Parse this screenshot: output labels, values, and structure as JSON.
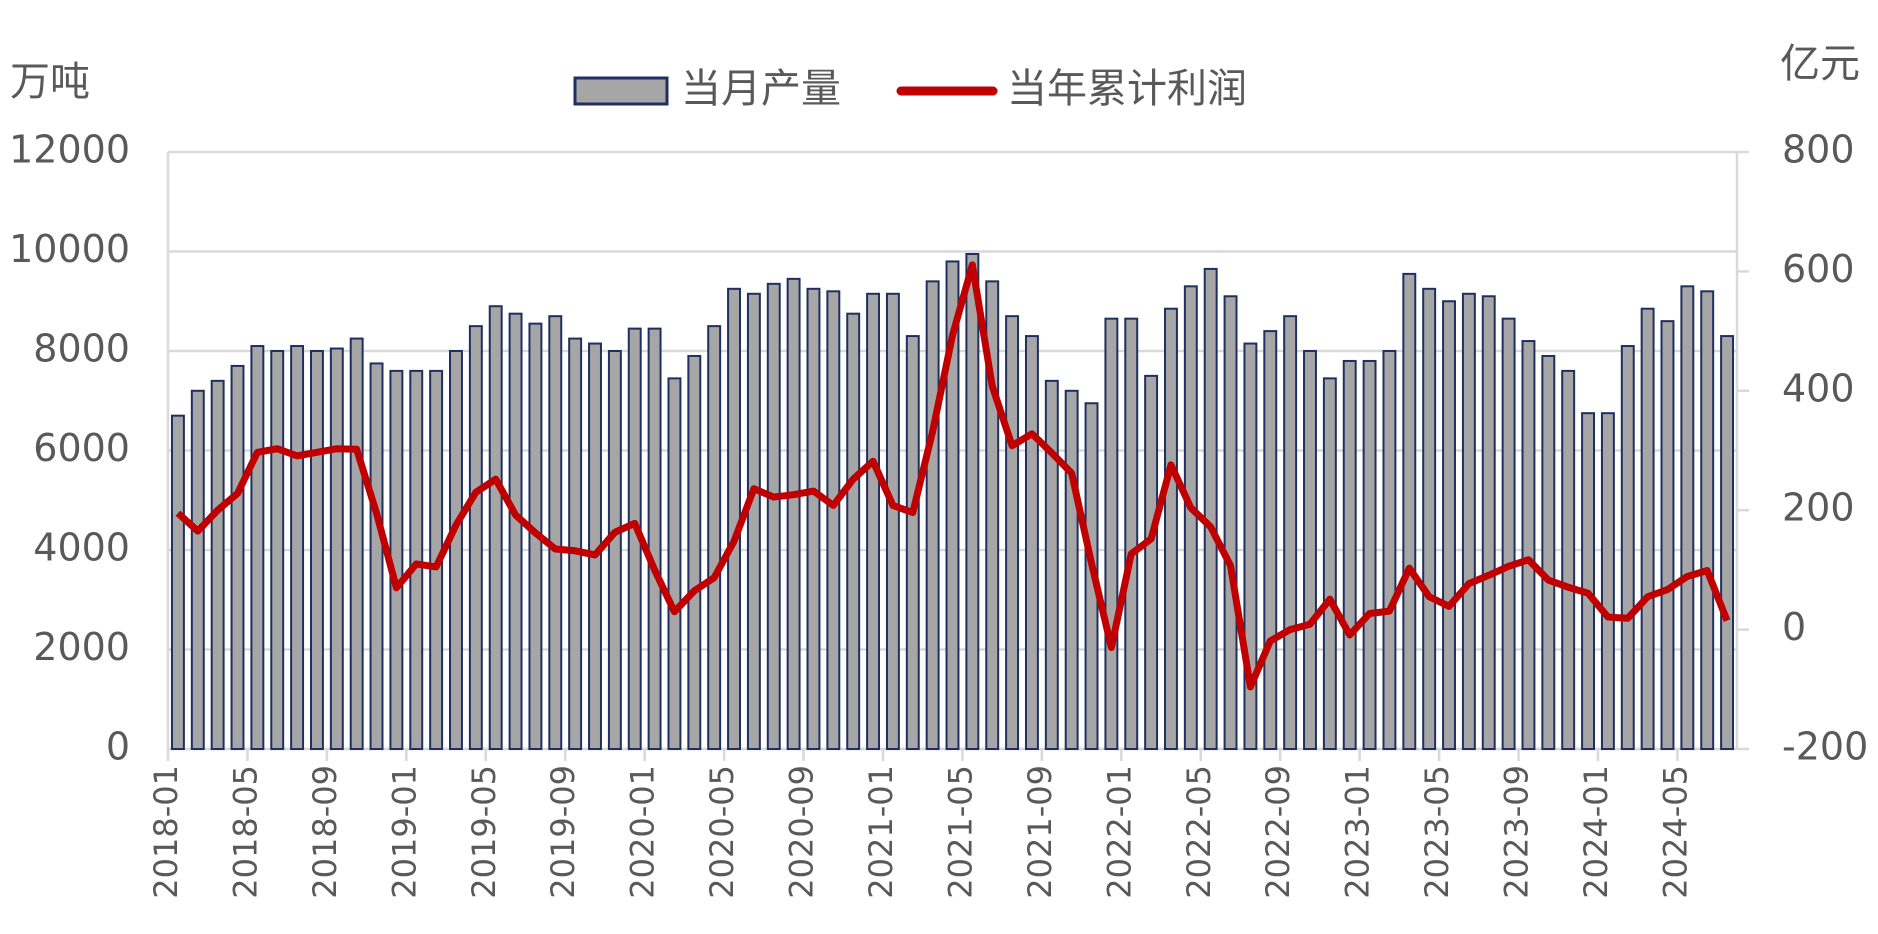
{
  "chart_data": {
    "type": "bar_line",
    "y_label": "万吨",
    "y2_label": "亿元",
    "categories": [
      "2018-01",
      null,
      null,
      null,
      "2018-05",
      null,
      null,
      null,
      "2018-09",
      null,
      null,
      null,
      "2019-01",
      null,
      null,
      null,
      "2019-05",
      null,
      null,
      null,
      "2019-09",
      null,
      null,
      null,
      "2020-01",
      null,
      null,
      null,
      "2020-05",
      null,
      null,
      null,
      "2020-09",
      null,
      null,
      null,
      "2021-01",
      null,
      null,
      null,
      "2021-05",
      null,
      null,
      null,
      "2021-09",
      null,
      null,
      null,
      "2022-01",
      null,
      null,
      null,
      "2022-05",
      null,
      null,
      null,
      "2022-09",
      null,
      null,
      null,
      "2023-01",
      null,
      null,
      null,
      "2023-05",
      null,
      null,
      null,
      "2023-09",
      null,
      null,
      null,
      "2024-01",
      null,
      null,
      null,
      "2024-05",
      null,
      null
    ],
    "series": [
      {
        "name": "当月产量",
        "type": "bar",
        "color": "#a6a6a6",
        "stroke": "#1f3060",
        "axis": "y",
        "values": [
          6700,
          7200,
          7400,
          7700,
          8100,
          8000,
          8100,
          8000,
          8050,
          8250,
          7750,
          7600,
          7600,
          7600,
          8000,
          8500,
          8900,
          8750,
          8550,
          8700,
          8250,
          8150,
          8000,
          8450,
          8450,
          7450,
          7900,
          8500,
          9250,
          9150,
          9350,
          9450,
          9250,
          9200,
          8750,
          9150,
          9150,
          8300,
          9400,
          9800,
          9950,
          9400,
          8700,
          8300,
          7400,
          7200,
          6950,
          8650,
          8650,
          7500,
          8850,
          9300,
          9650,
          9100,
          8150,
          8400,
          8700,
          8000,
          7450,
          7800,
          7800,
          8000,
          9550,
          9250,
          9000,
          9150,
          9100,
          8650,
          8200,
          7900,
          7600,
          6750,
          6750,
          8100,
          8850,
          8600,
          9300,
          9200,
          8300
        ]
      },
      {
        "name": "当年累计利润",
        "type": "line",
        "color": "#c00000",
        "axis": "y2",
        "values": [
          195,
          165,
          200,
          228,
          297,
          303,
          291,
          297,
          303,
          302,
          195,
          70,
          110,
          105,
          175,
          230,
          252,
          192,
          162,
          135,
          132,
          125,
          163,
          178,
          100,
          30,
          65,
          87,
          148,
          236,
          222,
          226,
          232,
          208,
          252,
          282,
          208,
          196,
          332,
          493,
          611,
          408,
          308,
          328,
          296,
          262,
          111,
          -30,
          127,
          152,
          276,
          204,
          172,
          107,
          -96,
          -19,
          0,
          9,
          51,
          -9,
          27,
          31,
          103,
          55,
          39,
          77,
          91,
          106,
          117,
          83,
          71,
          61,
          21,
          19,
          55,
          67,
          89,
          99,
          15
        ]
      }
    ],
    "ylim": [
      0,
      12000
    ],
    "yticks": [
      0,
      2000,
      4000,
      6000,
      8000,
      10000,
      12000
    ],
    "y2lim": [
      -200,
      800
    ],
    "y2ticks": [
      -200,
      0,
      200,
      400,
      600,
      800
    ],
    "grid": true,
    "legend": "top"
  }
}
